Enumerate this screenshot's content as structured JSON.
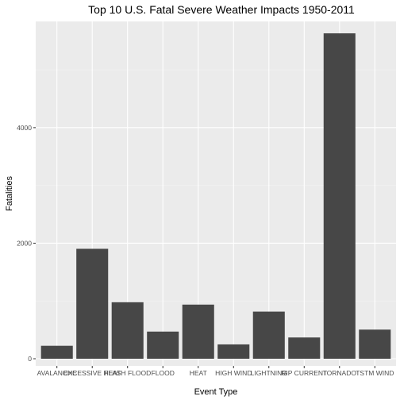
{
  "chart_data": {
    "type": "bar",
    "title": "Top 10 U.S. Fatal Severe Weather Impacts 1950-2011",
    "xlabel": "Event Type",
    "ylabel": "Fatalities",
    "categories": [
      "AVALANCHE",
      "EXCESSIVE HEAT",
      "FLASH FLOOD",
      "FLOOD",
      "HEAT",
      "HIGH WIND",
      "LIGHTNING",
      "RIP CURRENT",
      "TORNADO",
      "TSTM WIND"
    ],
    "values": [
      224,
      1903,
      978,
      470,
      937,
      248,
      816,
      368,
      5633,
      504
    ],
    "ylim": [
      0,
      5633
    ],
    "yticks": [
      0,
      2000,
      4000
    ],
    "ytick_labels": [
      "0",
      "2000",
      "4000"
    ],
    "grid": true,
    "legend": "none",
    "colors": {
      "bar": "#474747",
      "panel": "#ebebeb",
      "grid_major": "#ffffff",
      "grid_minor": "#f4f4f4",
      "tick": "#333333",
      "tick_label": "#4d4d4d"
    }
  }
}
